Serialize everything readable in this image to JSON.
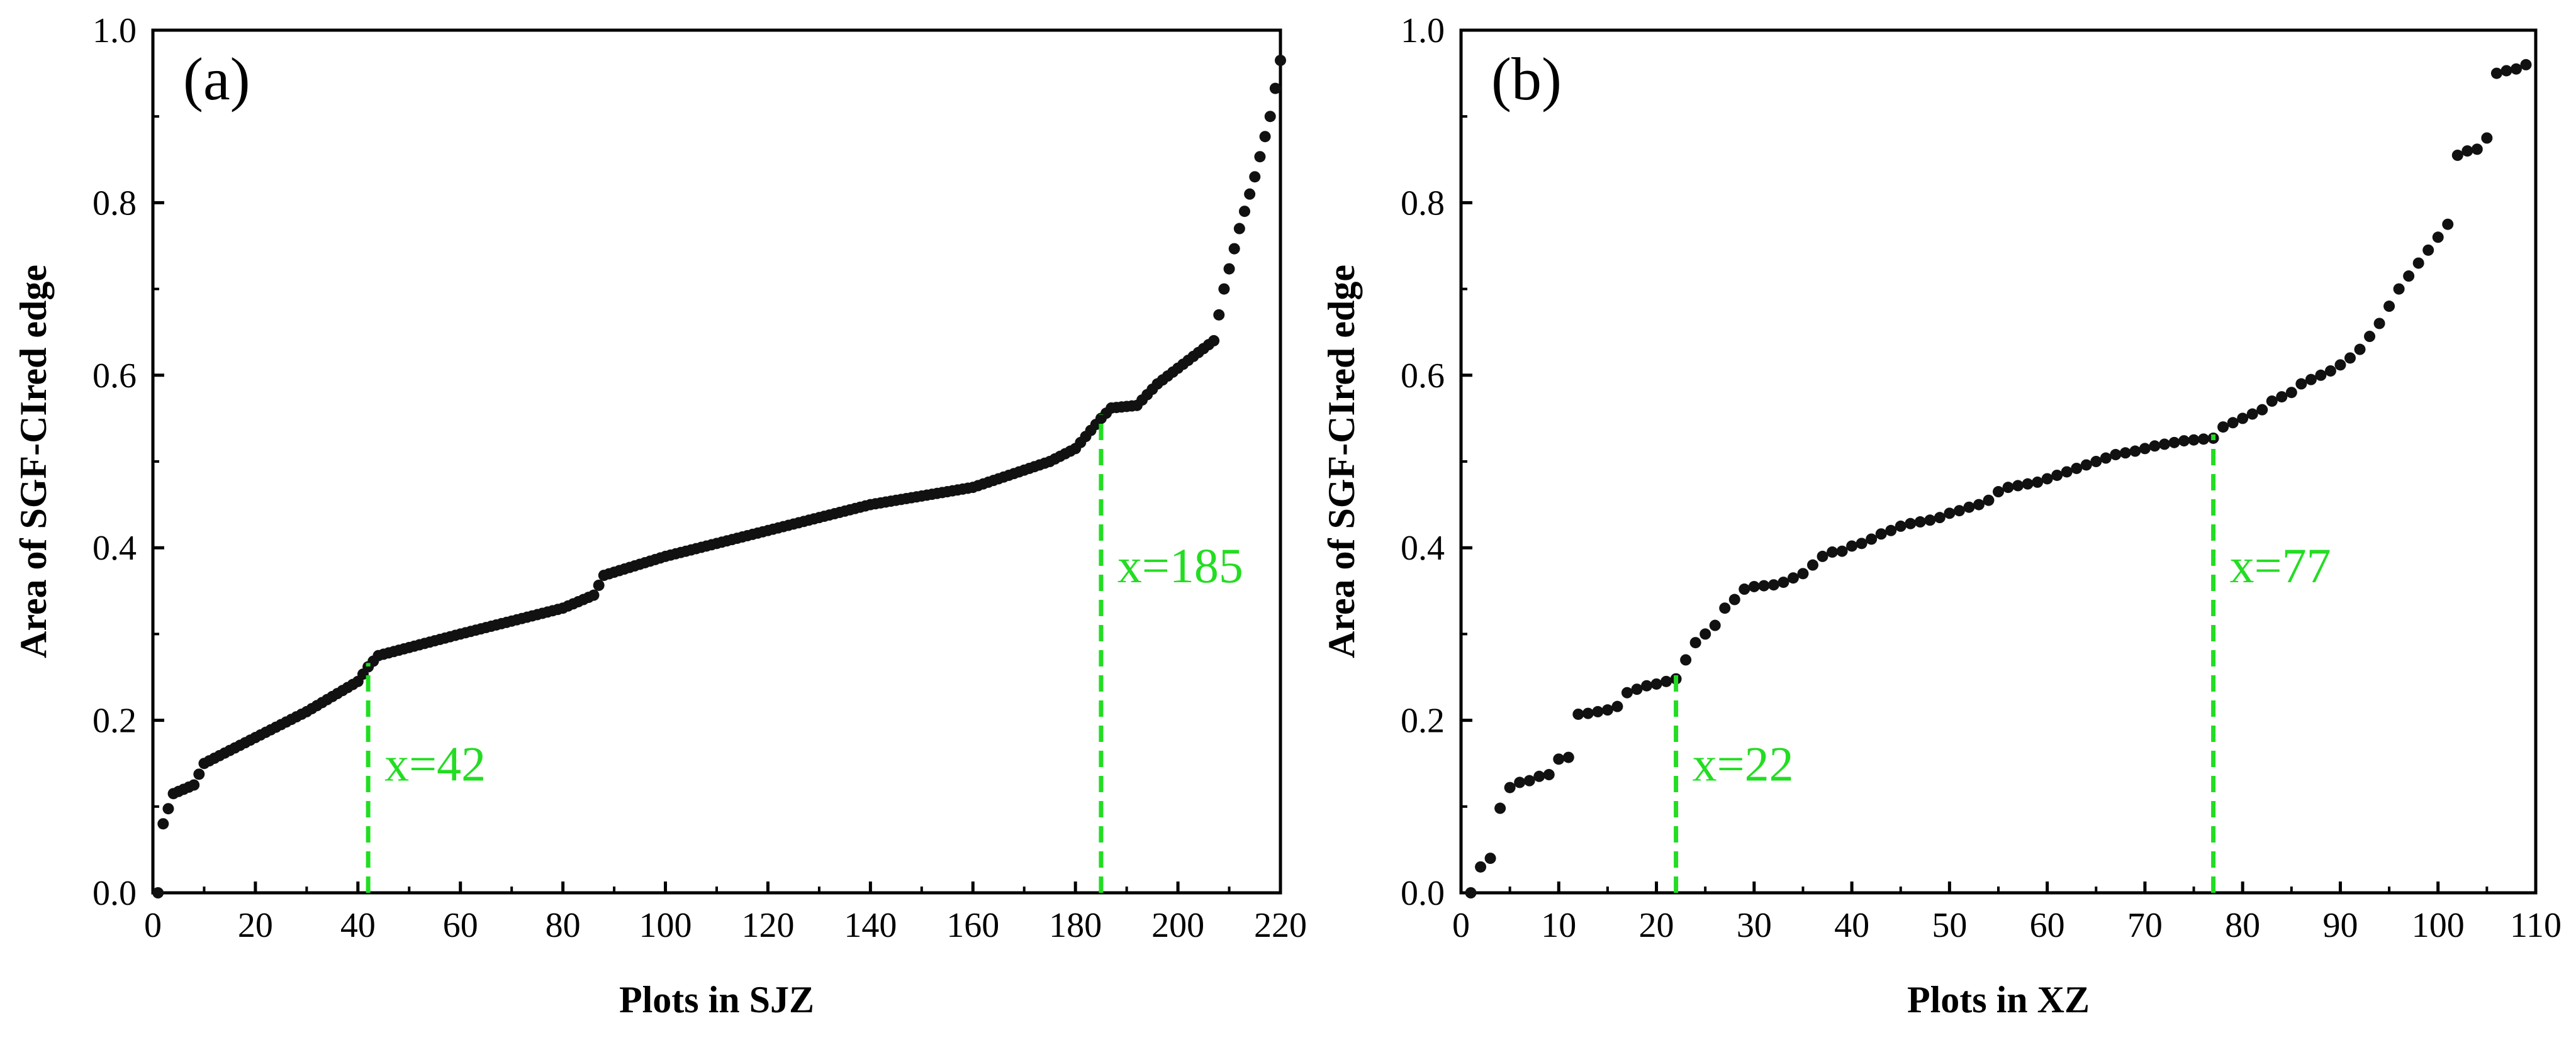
{
  "chart_data": [
    {
      "type": "scatter",
      "panel_label": "(a)",
      "xlabel": "Plots in SJZ",
      "ylabel": "Area of SGF-CIred edge",
      "xlim": [
        0,
        220
      ],
      "ylim": [
        0,
        1.0
      ],
      "xticks": [
        0,
        20,
        40,
        60,
        80,
        100,
        120,
        140,
        160,
        180,
        200,
        220
      ],
      "xtick_labels": [
        "0",
        "20",
        "40",
        "60",
        "80",
        "100",
        "120",
        "140",
        "160",
        "180",
        "200",
        "220"
      ],
      "yticks": [
        0.0,
        0.2,
        0.4,
        0.6,
        0.8,
        1.0
      ],
      "ytick_labels": [
        "0.0",
        "0.2",
        "0.4",
        "0.6",
        "0.8",
        "1.0"
      ],
      "grid": false,
      "marker_color": "#111111",
      "annotation_color": "#22dd22",
      "series_profile": [
        [
          1,
          0.0
        ],
        [
          2,
          0.08
        ],
        [
          4,
          0.115
        ],
        [
          8,
          0.125
        ],
        [
          10,
          0.15
        ],
        [
          20,
          0.18
        ],
        [
          30,
          0.21
        ],
        [
          40,
          0.245
        ],
        [
          42,
          0.262
        ],
        [
          44,
          0.275
        ],
        [
          60,
          0.3
        ],
        [
          80,
          0.33
        ],
        [
          86,
          0.345
        ],
        [
          88,
          0.368
        ],
        [
          100,
          0.39
        ],
        [
          120,
          0.42
        ],
        [
          140,
          0.45
        ],
        [
          160,
          0.47
        ],
        [
          175,
          0.5
        ],
        [
          180,
          0.515
        ],
        [
          185,
          0.55
        ],
        [
          187,
          0.562
        ],
        [
          192,
          0.565
        ],
        [
          196,
          0.59
        ],
        [
          207,
          0.64
        ],
        [
          209,
          0.7
        ],
        [
          212,
          0.77
        ],
        [
          215,
          0.83
        ],
        [
          218,
          0.9
        ],
        [
          220,
          0.965
        ]
      ],
      "annotations": [
        {
          "x": 42,
          "label": "x=42",
          "side": "right",
          "level": "low"
        },
        {
          "x": 185,
          "label": "x=185",
          "side": "right",
          "level": "mid"
        }
      ]
    },
    {
      "type": "scatter",
      "panel_label": "(b)",
      "xlabel": "Plots in XZ",
      "ylabel": "Area of SGF-CIred edge",
      "xlim": [
        0,
        110
      ],
      "ylim": [
        0,
        1.0
      ],
      "xticks": [
        0,
        10,
        20,
        30,
        40,
        50,
        60,
        70,
        80,
        90,
        100,
        110
      ],
      "xtick_labels": [
        "0",
        "10",
        "20",
        "30",
        "40",
        "50",
        "60",
        "70",
        "80",
        "90",
        "100",
        "110"
      ],
      "yticks": [
        0.0,
        0.2,
        0.4,
        0.6,
        0.8,
        1.0
      ],
      "ytick_labels": [
        "0.0",
        "0.2",
        "0.4",
        "0.6",
        "0.8",
        "1.0"
      ],
      "grid": false,
      "marker_color": "#111111",
      "annotation_color": "#22dd22",
      "series": [
        0.0,
        0.03,
        0.04,
        0.098,
        0.122,
        0.128,
        0.13,
        0.135,
        0.137,
        0.155,
        0.157,
        0.207,
        0.208,
        0.21,
        0.212,
        0.216,
        0.232,
        0.236,
        0.24,
        0.242,
        0.245,
        0.248,
        0.27,
        0.29,
        0.3,
        0.31,
        0.33,
        0.34,
        0.352,
        0.355,
        0.356,
        0.357,
        0.36,
        0.365,
        0.37,
        0.38,
        0.39,
        0.395,
        0.396,
        0.402,
        0.405,
        0.41,
        0.416,
        0.42,
        0.425,
        0.428,
        0.43,
        0.432,
        0.435,
        0.44,
        0.443,
        0.447,
        0.45,
        0.455,
        0.465,
        0.47,
        0.472,
        0.474,
        0.476,
        0.48,
        0.484,
        0.488,
        0.492,
        0.496,
        0.5,
        0.504,
        0.508,
        0.51,
        0.512,
        0.515,
        0.518,
        0.52,
        0.522,
        0.524,
        0.525,
        0.526,
        0.527,
        0.54,
        0.545,
        0.55,
        0.555,
        0.56,
        0.57,
        0.575,
        0.58,
        0.59,
        0.595,
        0.6,
        0.605,
        0.612,
        0.62,
        0.63,
        0.645,
        0.66,
        0.68,
        0.7,
        0.715,
        0.73,
        0.745,
        0.76,
        0.775,
        0.855,
        0.86,
        0.862,
        0.875,
        0.95,
        0.953,
        0.955,
        0.96
      ],
      "annotations": [
        {
          "x": 22,
          "label": "x=22",
          "side": "right",
          "level": "low"
        },
        {
          "x": 77,
          "label": "x=77",
          "side": "right",
          "level": "mid"
        }
      ]
    }
  ]
}
